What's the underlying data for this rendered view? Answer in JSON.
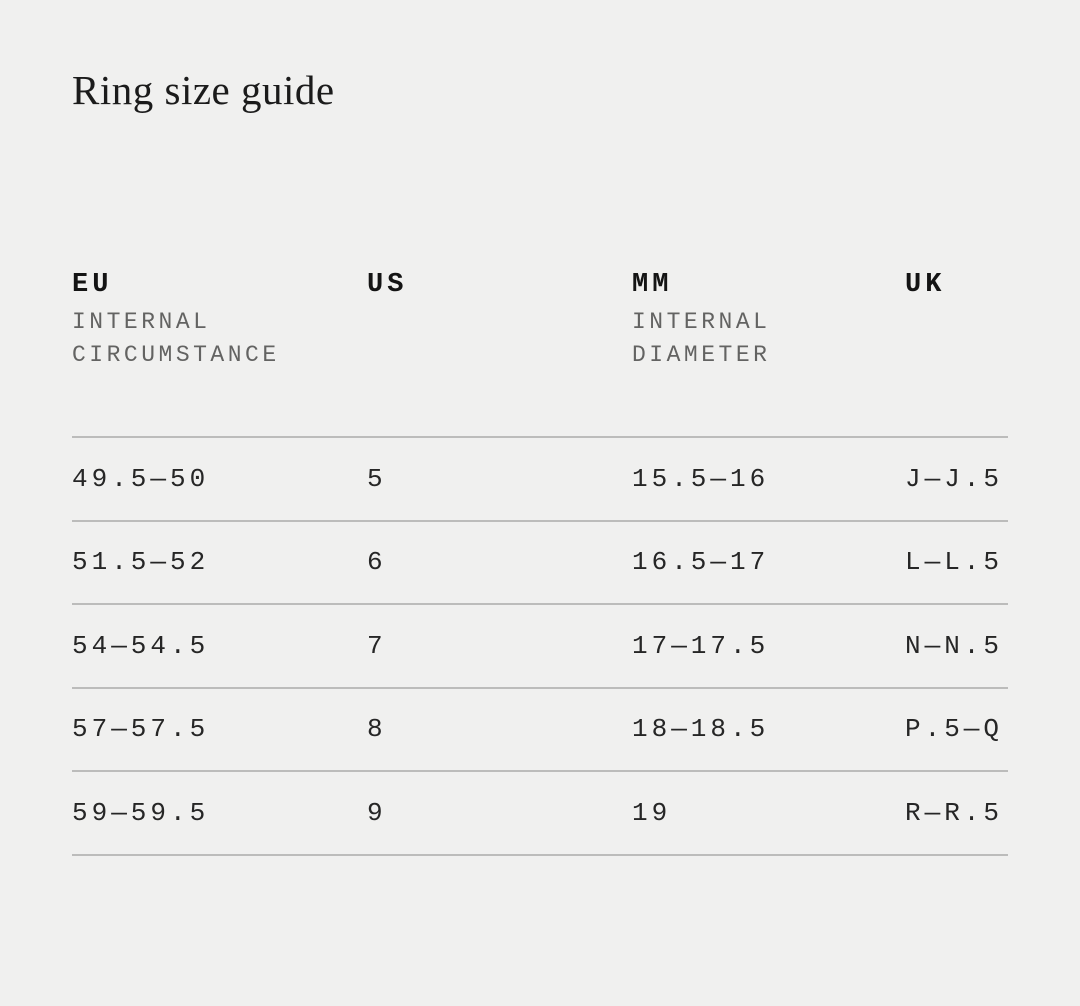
{
  "page": {
    "background_color": "#f0f0ef",
    "divider_color": "#bcbcbb"
  },
  "title": "Ring size guide",
  "size_table": {
    "columns": [
      {
        "key": "eu",
        "label": "EU",
        "sublabel": "INTERNAL\nCIRCUMSTANCE"
      },
      {
        "key": "us",
        "label": "US",
        "sublabel": ""
      },
      {
        "key": "mm",
        "label": "MM",
        "sublabel": "INTERNAL\nDIAMETER"
      },
      {
        "key": "uk",
        "label": "UK",
        "sublabel": ""
      }
    ],
    "rows": [
      {
        "eu": "49.5—50",
        "us": "5",
        "mm": "15.5—16",
        "uk": "J—J.5"
      },
      {
        "eu": "51.5—52",
        "us": "6",
        "mm": "16.5—17",
        "uk": "L—L.5"
      },
      {
        "eu": "54—54.5",
        "us": "7",
        "mm": "17—17.5",
        "uk": "N—N.5"
      },
      {
        "eu": "57—57.5",
        "us": "8",
        "mm": "18—18.5",
        "uk": "P.5—Q"
      },
      {
        "eu": "59—59.5",
        "us": "9",
        "mm": "19",
        "uk": "R—R.5"
      }
    ]
  }
}
